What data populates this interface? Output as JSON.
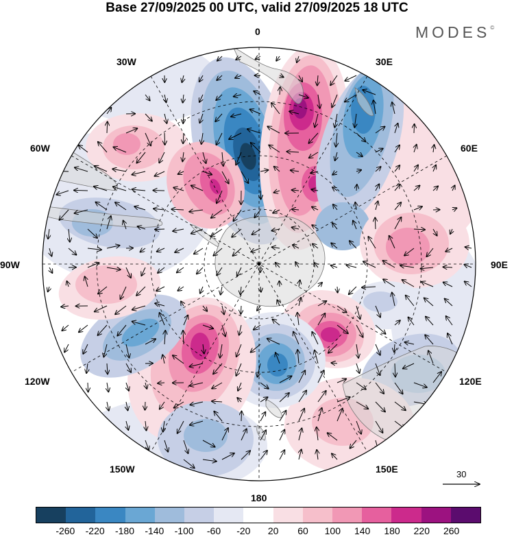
{
  "title": "Base 27/09/2025 00 UTC, valid 27/09/2025 18 UTC",
  "brand": {
    "name": "MODES",
    "mark": "©"
  },
  "meridian_labels": {
    "lon_0": "0",
    "lon_30e": "30E",
    "lon_60e": "60E",
    "lon_90e": "90E",
    "lon_120e": "120E",
    "lon_150e": "150E",
    "lon_180": "180",
    "lon_150w": "150W",
    "lon_120w": "120W",
    "lon_90w": "90W",
    "lon_60w": "60W",
    "lon_30w": "30W"
  },
  "reference_vector": {
    "value": "30"
  },
  "colorbar": {
    "colors": [
      "#17405f",
      "#22649a",
      "#3a87c2",
      "#6aa7d4",
      "#9fbcdc",
      "#c6cfe6",
      "#e5e8f3",
      "#ffffff",
      "#f9dfe4",
      "#f6bfcb",
      "#f198b5",
      "#e6609e",
      "#cc2a8c",
      "#9c1280",
      "#5b0c6e"
    ],
    "tick_labels": [
      "-260",
      "-220",
      "-180",
      "-140",
      "-100",
      "-60",
      "-20",
      "20",
      "60",
      "100",
      "140",
      "180",
      "220",
      "260"
    ]
  }
}
